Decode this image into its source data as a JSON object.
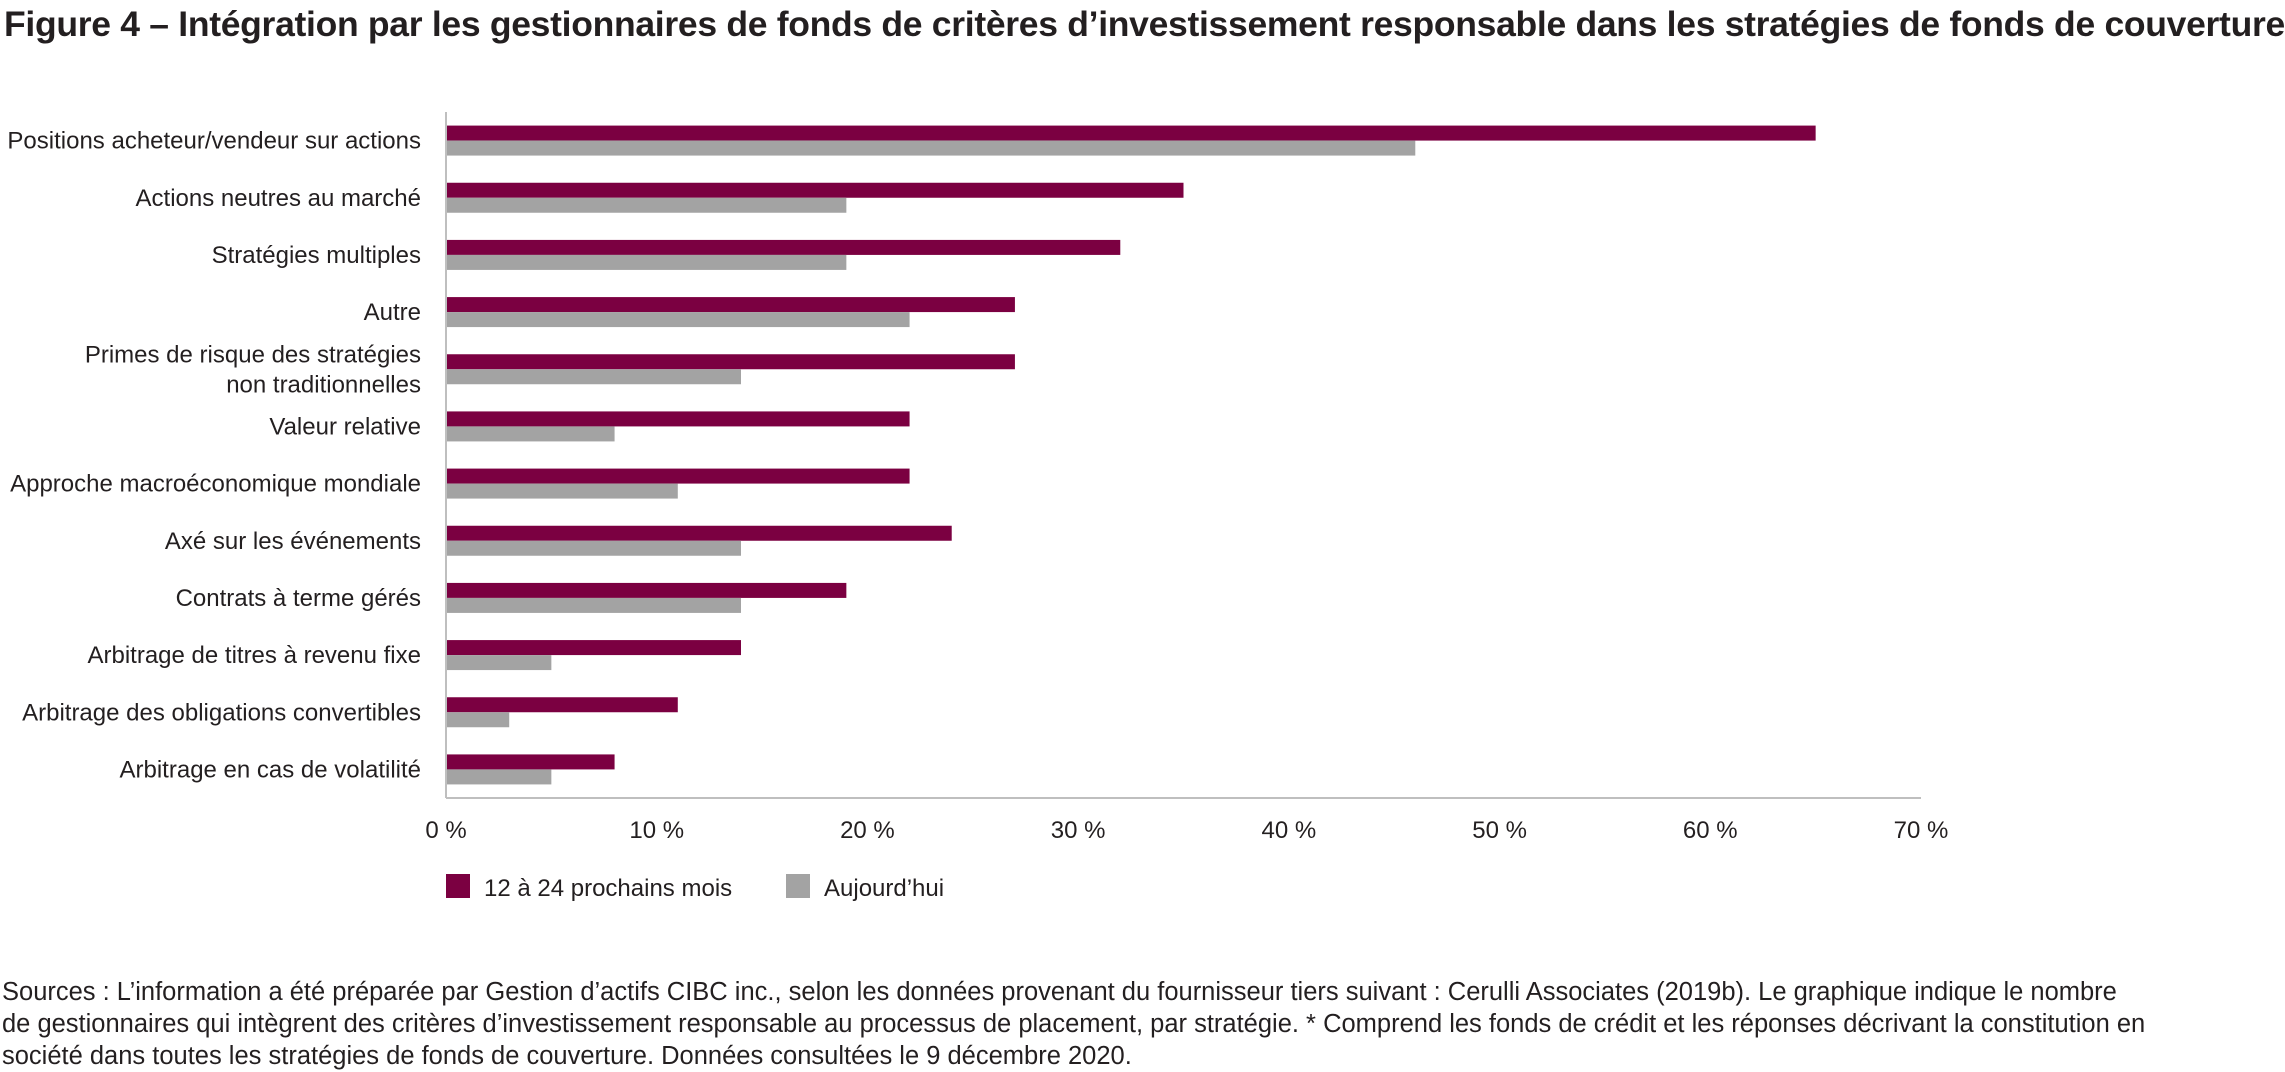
{
  "title": "Figure 4 – Intégration par les gestionnaires de fonds de critères d’investissement responsable dans les stratégies de fonds de couverture",
  "sources": "Sources : L’information a été préparée par Gestion d’actifs CIBC inc., selon les données provenant du fournisseur tiers suivant : Cerulli Associates (2019b). Le graphique indique le nombre de gestionnaires qui intègrent des critères d’investissement responsable au processus de placement, par stratégie. * Comprend les fonds de crédit et les réponses décrivant la constitution en société dans toutes les stratégies de fonds de couverture. Données consultées le 9 décembre 2020.",
  "chart_data": {
    "type": "bar",
    "orientation": "horizontal",
    "categories": [
      [
        "Positions acheteur/vendeur sur actions"
      ],
      [
        "Actions neutres au marché"
      ],
      [
        "Stratégies multiples"
      ],
      [
        "Autre"
      ],
      [
        "Primes de risque des stratégies",
        "non traditionnelles"
      ],
      [
        "Valeur relative"
      ],
      [
        "Approche macroéconomique mondiale"
      ],
      [
        "Axé sur les événements"
      ],
      [
        "Contrats à terme gérés"
      ],
      [
        "Arbitrage de titres à revenu fixe"
      ],
      [
        "Arbitrage des obligations convertibles"
      ],
      [
        "Arbitrage en cas de volatilité"
      ]
    ],
    "series": [
      {
        "name": "12 à 24 prochains mois",
        "color": "#7b0041",
        "values": [
          65,
          35,
          32,
          27,
          27,
          22,
          22,
          24,
          19,
          14,
          11,
          8
        ]
      },
      {
        "name": "Aujourd’hui",
        "color": "#a3a3a3",
        "values": [
          46,
          19,
          19,
          22,
          14,
          8,
          11,
          14,
          14,
          5,
          3,
          5
        ]
      }
    ],
    "xlim": [
      0,
      70
    ],
    "xticks": [
      0,
      10,
      20,
      30,
      40,
      50,
      60,
      70
    ],
    "xtick_labels": [
      "0 %",
      "10 %",
      "20 %",
      "30 %",
      "40 %",
      "50 %",
      "60 %",
      "70 %"
    ],
    "grid": false,
    "legend": "bottom-left"
  }
}
